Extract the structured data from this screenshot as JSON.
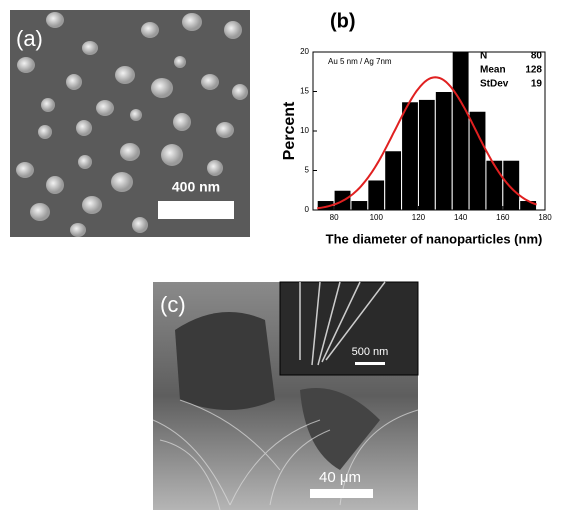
{
  "panel_a": {
    "label": "(a)",
    "scale_bar": "400 nm"
  },
  "chart_data": {
    "type": "histogram",
    "panel_label": "(b)",
    "annotation": "Au 5 nm / Ag 7nm",
    "stats": [
      {
        "label": "N",
        "value": 80
      },
      {
        "label": "Mean",
        "value": 128
      },
      {
        "label": "StDev",
        "value": 19
      }
    ],
    "xlabel": "The diameter of nanoparticles (nm)",
    "ylabel": "Percent",
    "bins": [
      72,
      80,
      88,
      96,
      104,
      112,
      120,
      128,
      136,
      144,
      152,
      160,
      168,
      176
    ],
    "values": [
      1.2,
      2.5,
      1.2,
      3.8,
      7.5,
      13.7,
      14,
      15,
      20,
      12.5,
      6.3,
      6.3,
      1.2
    ],
    "color": "#000000",
    "fit_color": "#e02020",
    "xlim": [
      70,
      180
    ],
    "ylim": [
      0,
      20
    ],
    "xticks": [
      80,
      100,
      120,
      140,
      160,
      180
    ],
    "yticks": [
      0,
      5,
      10,
      15,
      20
    ]
  },
  "panel_c": {
    "label": "(c)",
    "inset_scale_bar": "500 nm",
    "scale_bar": "40 μm"
  }
}
